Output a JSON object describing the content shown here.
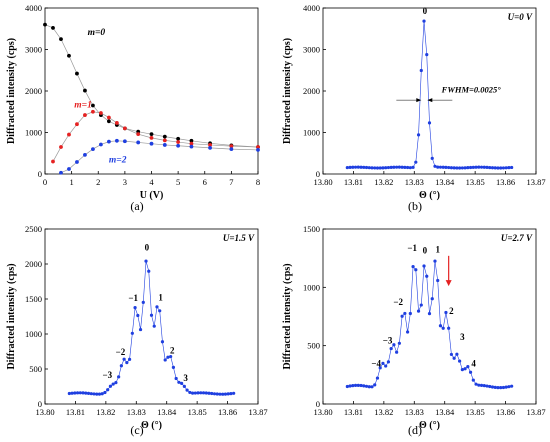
{
  "panels": [
    {
      "id": "a",
      "caption": "(a)",
      "type": "line",
      "xlabel": "U (V)",
      "ylabel": "Diffracted intensity (cps)",
      "xlim": [
        0,
        8
      ],
      "ylim": [
        0,
        4000
      ],
      "xticks": [
        "0",
        "1",
        "2",
        "3",
        "4",
        "5",
        "6",
        "7",
        "8"
      ],
      "yticks": [
        "0",
        "1000",
        "2000",
        "3000",
        "4000"
      ],
      "corner_label": "",
      "series": [
        {
          "name": "m=0",
          "color": "#000000",
          "x": [
            0,
            0.3,
            0.6,
            0.9,
            1.2,
            1.5,
            1.8,
            2.1,
            2.4,
            2.7,
            3.0,
            3.5,
            4.0,
            4.5,
            5.0,
            5.5,
            6.2,
            7.0,
            8.0
          ],
          "y": [
            3600,
            3520,
            3250,
            2850,
            2420,
            2010,
            1650,
            1420,
            1270,
            1180,
            1100,
            1020,
            960,
            900,
            850,
            800,
            740,
            690,
            650
          ]
        },
        {
          "name": "m=1",
          "color": "#e52222",
          "x": [
            0.3,
            0.6,
            0.9,
            1.2,
            1.5,
            1.8,
            2.1,
            2.4,
            2.7,
            3.0,
            3.5,
            4.0,
            4.5,
            5.0,
            5.5,
            6.2,
            7.0,
            8.0
          ],
          "y": [
            300,
            650,
            950,
            1200,
            1420,
            1500,
            1470,
            1360,
            1230,
            1100,
            960,
            870,
            810,
            770,
            730,
            700,
            670,
            650
          ]
        },
        {
          "name": "m=2",
          "color": "#1f3fe0",
          "x": [
            0.6,
            0.9,
            1.2,
            1.5,
            1.8,
            2.1,
            2.4,
            2.7,
            3.0,
            3.5,
            4.0,
            4.5,
            5.0,
            5.5,
            6.2,
            7.0,
            8.0
          ],
          "y": [
            30,
            120,
            290,
            460,
            600,
            710,
            780,
            800,
            790,
            760,
            730,
            700,
            680,
            660,
            630,
            600,
            580
          ]
        }
      ]
    },
    {
      "id": "b",
      "caption": "(b)",
      "type": "line",
      "xlabel": "Θ (°)",
      "ylabel": "Diffracted intensity (cps)",
      "xlim": [
        13.8,
        13.87
      ],
      "ylim": [
        0,
        4000
      ],
      "xticks": [
        "13.80",
        "13.81",
        "13.82",
        "13.83",
        "13.84",
        "13.85",
        "13.86",
        "13.87"
      ],
      "yticks": [
        "0",
        "1000",
        "2000",
        "3000",
        "4000"
      ],
      "corner_label": "U=0 V",
      "color": "#1f3fe0",
      "base": 155,
      "peaks": [
        {
          "center": 13.8333,
          "height": 3550,
          "width": 0.0011
        }
      ],
      "range": [
        13.808,
        13.862
      ],
      "step": 0.0009,
      "annotations": [
        {
          "text": "0",
          "x": 13.8335,
          "y": 3850
        },
        {
          "text": "FWHM=0.0025°",
          "x": 13.839,
          "y": 1960
        }
      ]
    },
    {
      "id": "c",
      "caption": "(c)",
      "type": "line",
      "xlabel": "Θ (°)",
      "ylabel": "Diffracted intensity (cps)",
      "xlim": [
        13.8,
        13.87
      ],
      "ylim": [
        0,
        2500
      ],
      "xticks": [
        "13.80",
        "13.81",
        "13.82",
        "13.83",
        "13.84",
        "13.85",
        "13.86",
        "13.87"
      ],
      "yticks": [
        "0",
        "500",
        "1000",
        "1500",
        "2000",
        "2500"
      ],
      "corner_label": "U=1.5 V",
      "color": "#1f3fe0",
      "base": 150,
      "peaks": [
        {
          "center": 13.8335,
          "height": 1930,
          "width": 0.0012
        },
        {
          "center": 13.8298,
          "height": 1230,
          "width": 0.0012
        },
        {
          "center": 13.8372,
          "height": 1250,
          "width": 0.0012
        },
        {
          "center": 13.826,
          "height": 470,
          "width": 0.0013
        },
        {
          "center": 13.841,
          "height": 530,
          "width": 0.0013
        },
        {
          "center": 13.8223,
          "height": 120,
          "width": 0.0014
        },
        {
          "center": 13.8447,
          "height": 150,
          "width": 0.0014
        }
      ],
      "range": [
        13.808,
        13.862
      ],
      "step": 0.0009,
      "annotations": [
        {
          "text": "0",
          "x": 13.8335,
          "y": 2190
        },
        {
          "text": "−1",
          "x": 13.829,
          "y": 1470
        },
        {
          "text": "1",
          "x": 13.838,
          "y": 1480
        },
        {
          "text": "−2",
          "x": 13.8248,
          "y": 700
        },
        {
          "text": "2",
          "x": 13.8418,
          "y": 720
        },
        {
          "text": "−3",
          "x": 13.8205,
          "y": 370
        },
        {
          "text": "3",
          "x": 13.8462,
          "y": 330
        }
      ]
    },
    {
      "id": "d",
      "caption": "(d)",
      "type": "line",
      "xlabel": "Θ (°)",
      "ylabel": "Diffracted intensity (cps)",
      "xlim": [
        13.8,
        13.87
      ],
      "ylim": [
        0,
        1500
      ],
      "xticks": [
        "13.80",
        "13.81",
        "13.82",
        "13.83",
        "13.84",
        "13.85",
        "13.86",
        "13.87"
      ],
      "yticks": [
        "0",
        "500",
        "1000",
        "1500"
      ],
      "corner_label": "U=2.7 V",
      "color": "#1f3fe0",
      "base": 150,
      "peaks": [
        {
          "center": 13.8335,
          "height": 1060,
          "width": 0.0011
        },
        {
          "center": 13.83,
          "height": 1090,
          "width": 0.0011
        },
        {
          "center": 13.837,
          "height": 1070,
          "width": 0.0011
        },
        {
          "center": 13.8265,
          "height": 640,
          "width": 0.0011
        },
        {
          "center": 13.8405,
          "height": 620,
          "width": 0.0011
        },
        {
          "center": 13.823,
          "height": 350,
          "width": 0.0012
        },
        {
          "center": 13.844,
          "height": 280,
          "width": 0.0012
        },
        {
          "center": 13.8195,
          "height": 200,
          "width": 0.0012
        },
        {
          "center": 13.8475,
          "height": 170,
          "width": 0.0012
        }
      ],
      "range": [
        13.808,
        13.862
      ],
      "step": 0.0009,
      "annotations": [
        {
          "text": "−1",
          "x": 13.8293,
          "y": 1310
        },
        {
          "text": "0",
          "x": 13.8335,
          "y": 1290
        },
        {
          "text": "1",
          "x": 13.8377,
          "y": 1300
        },
        {
          "text": "−2",
          "x": 13.8247,
          "y": 850
        },
        {
          "text": "2",
          "x": 13.8422,
          "y": 770
        },
        {
          "text": "−3",
          "x": 13.8212,
          "y": 520
        },
        {
          "text": "3",
          "x": 13.8458,
          "y": 550
        },
        {
          "text": "−4",
          "x": 13.8175,
          "y": 320
        },
        {
          "text": "4",
          "x": 13.8495,
          "y": 320
        }
      ],
      "arrow": {
        "x": 13.8413,
        "y_from": 1270,
        "y_to": 1010,
        "color": "#e52222"
      }
    }
  ],
  "colors": {
    "axis": "#000000",
    "connector": "#9a9a9a"
  }
}
